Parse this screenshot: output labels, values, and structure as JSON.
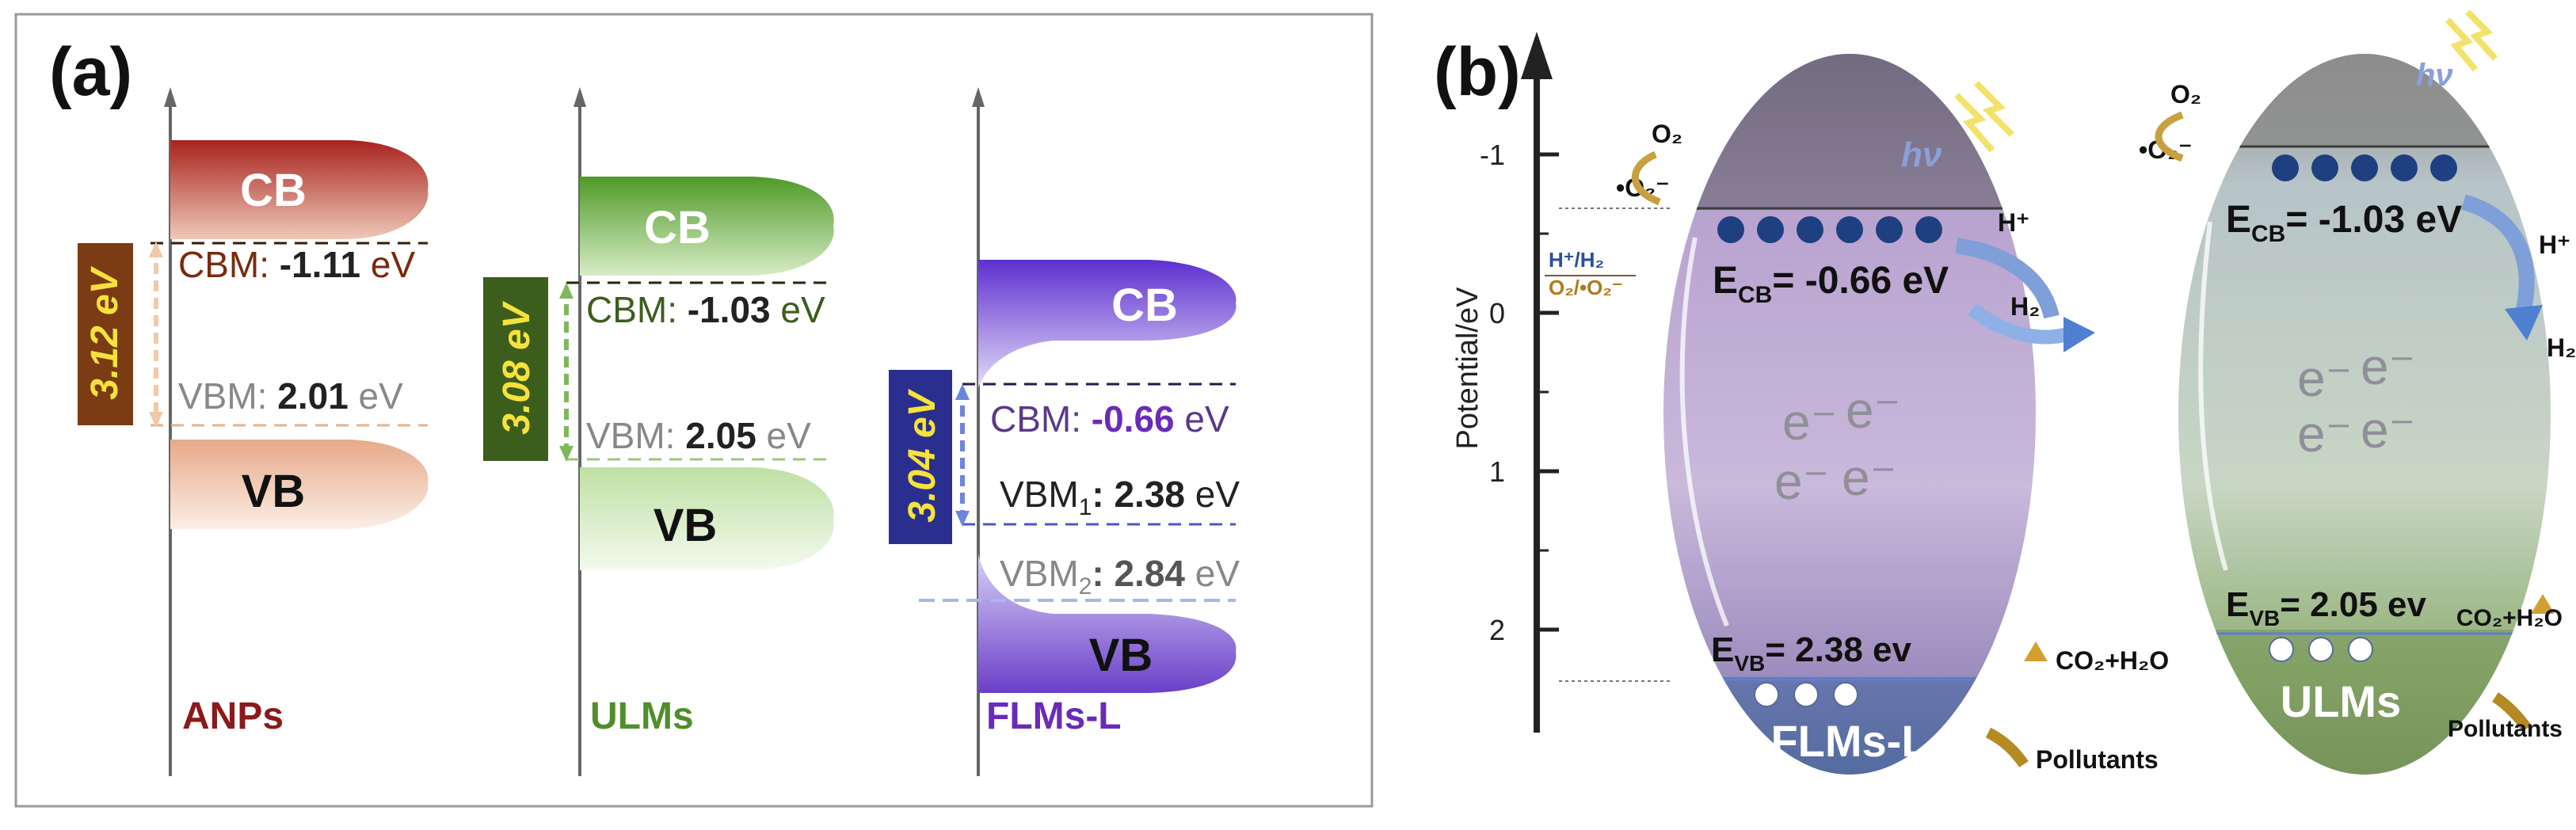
{
  "panel_a": {
    "label": "(a)",
    "anps": {
      "name": "ANPs",
      "cb": "CB",
      "vb": "VB",
      "gap": "3.12 eV",
      "cbm_prefix": "CBM: ",
      "cbm_value": "-1.11",
      "cbm_unit": " eV",
      "vbm_prefix": "VBM: ",
      "vbm_value": "2.01",
      "vbm_unit": " eV"
    },
    "ulms": {
      "name": "ULMs",
      "cb": "CB",
      "vb": "VB",
      "gap": "3.08 eV",
      "cbm_prefix": "CBM: ",
      "cbm_value": "-1.03",
      "cbm_unit": " eV",
      "vbm_prefix": "VBM: ",
      "vbm_value": "2.05",
      "vbm_unit": " eV"
    },
    "flms": {
      "name": "FLMs-L",
      "cb": "CB",
      "vb": "VB",
      "gap": "3.04 eV",
      "cbm_prefix": "CBM: ",
      "cbm_value": "-0.66",
      "cbm_unit": " eV",
      "vbm1_prefix": "VBM",
      "vbm1_sub": "1",
      "vbm1_value": ": 2.38",
      "vbm1_unit": " eV",
      "vbm2_prefix": "VBM",
      "vbm2_sub": "2",
      "vbm2_value": ": 2.84",
      "vbm2_unit": " eV"
    }
  },
  "panel_b": {
    "label": "(b)",
    "axis_label": "Potential/eV",
    "ticks": [
      "-1",
      "0",
      "1",
      "2"
    ],
    "redox_h": "H⁺/H₂",
    "redox_o": "O₂/•O₂⁻",
    "flms": {
      "name": "FLMs-L",
      "ecb_prefix": "E",
      "ecb_sub": "CB",
      "ecb_value": "= -0.66 eV",
      "evb_prefix": "E",
      "evb_sub": "VB",
      "evb_value": "= 2.38 ev",
      "o2": "O₂",
      "o2rad": "•O₂⁻",
      "hplus": "H⁺",
      "h2": "H₂",
      "co2": "CO₂+H₂O",
      "pollutants": "Pollutants",
      "hv": "hν",
      "electron": "e⁻",
      "hole": "h⁺"
    },
    "ulms": {
      "name": "ULMs",
      "ecb_prefix": "E",
      "ecb_sub": "CB",
      "ecb_value": "= -1.03 eV",
      "evb_prefix": "E",
      "evb_sub": "VB",
      "evb_value": "= 2.05 ev",
      "o2": "O₂",
      "o2rad": "•O₂⁻",
      "hplus": "H⁺",
      "h2": "H₂",
      "co2": "CO₂+H₂O",
      "pollutants": "Pollutants",
      "hv": "hν",
      "electron": "e⁻",
      "hole": "h⁺"
    }
  },
  "colors": {
    "anps": "#8b1a1a",
    "ulms": "#4f8f2a",
    "flms": "#6a2bb8",
    "panel_border": "#9a9a9a",
    "axis": "#666666",
    "cb_arrow": "#6f9bd8"
  }
}
